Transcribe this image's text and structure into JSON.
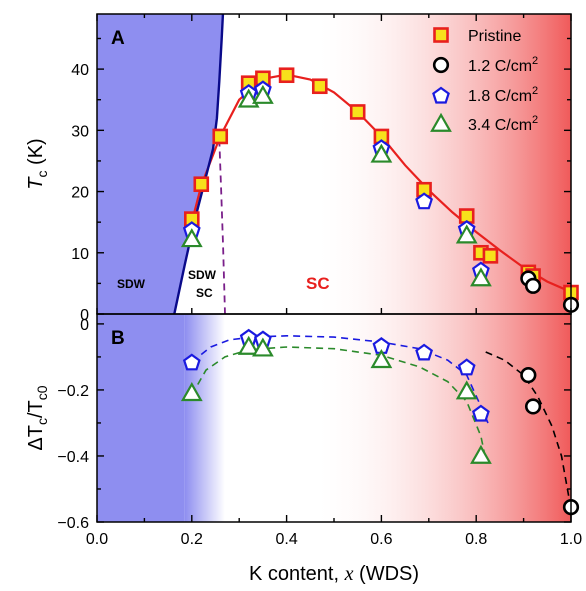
{
  "chart_data": [
    {
      "panel": "A",
      "type": "scatter",
      "ylabel": "T_c (K)",
      "ylabel_main": "T",
      "ylabel_sub": "c",
      "ylabel_unit": " (K)",
      "xlim": [
        0.0,
        1.0
      ],
      "ylim": [
        0,
        49
      ],
      "yticks": [
        "0",
        "10",
        "20",
        "30",
        "40"
      ],
      "ytick_values": [
        0,
        10,
        20,
        30,
        40
      ],
      "legend_position": "top-right",
      "region_labels": [
        "SDW",
        "SDW",
        "SC",
        "SC"
      ],
      "series": [
        {
          "name": "Pristine",
          "marker": "square",
          "color": "#e8201e",
          "fill": "#f7e11b",
          "x": [
            0.2,
            0.22,
            0.26,
            0.32,
            0.35,
            0.4,
            0.47,
            0.55,
            0.6,
            0.69,
            0.78,
            0.81,
            0.83,
            0.91,
            0.92,
            1.0
          ],
          "y": [
            15.5,
            21.2,
            29.0,
            37.7,
            38.5,
            39.0,
            37.2,
            33.0,
            29.0,
            20.3,
            16.0,
            10.0,
            9.5,
            6.8,
            6.2,
            3.5
          ]
        },
        {
          "name": "1.2 C/cm²",
          "marker": "circle",
          "color": "#000000",
          "fill": "#ffffff",
          "x": [
            0.91,
            0.92,
            1.0
          ],
          "y": [
            5.8,
            4.6,
            1.5
          ]
        },
        {
          "name": "1.8 C/cm²",
          "marker": "pentagon",
          "color": "#1a1ae0",
          "fill": "#ffffff",
          "x": [
            0.2,
            0.32,
            0.35,
            0.6,
            0.69,
            0.78,
            0.81
          ],
          "y": [
            13.8,
            36.2,
            36.8,
            27.2,
            18.5,
            14.0,
            7.2
          ]
        },
        {
          "name": "3.4 C/cm²",
          "marker": "triangle",
          "color": "#2b8a2b",
          "fill": "#ffffff",
          "x": [
            0.2,
            0.32,
            0.35,
            0.6,
            0.78,
            0.81
          ],
          "y": [
            12.2,
            35.0,
            35.6,
            26.0,
            12.8,
            5.8
          ]
        }
      ]
    },
    {
      "panel": "B",
      "type": "scatter",
      "ylabel": "ΔT_c/T_c0",
      "xlabel": "K content, x (WDS)",
      "xlim": [
        0.0,
        1.0
      ],
      "ylim": [
        -0.6,
        0.03
      ],
      "xticks": [
        "0.0",
        "0.2",
        "0.4",
        "0.6",
        "0.8",
        "1.0"
      ],
      "xtick_values": [
        0.0,
        0.2,
        0.4,
        0.6,
        0.8,
        1.0
      ],
      "yticks": [
        "0",
        "−0.2",
        "−0.4",
        "−0.6"
      ],
      "ytick_values": [
        0,
        -0.2,
        -0.4,
        -0.6
      ],
      "series": [
        {
          "name": "1.2 C/cm²",
          "marker": "circle",
          "color": "#000000",
          "fill": "#ffffff",
          "x": [
            0.91,
            0.92,
            1.0
          ],
          "y": [
            -0.155,
            -0.25,
            -0.555
          ]
        },
        {
          "name": "1.8 C/cm²",
          "marker": "pentagon",
          "color": "#1a1ae0",
          "fill": "#ffffff",
          "x": [
            0.2,
            0.32,
            0.35,
            0.6,
            0.69,
            0.78,
            0.81
          ],
          "y": [
            -0.115,
            -0.04,
            -0.045,
            -0.065,
            -0.085,
            -0.13,
            -0.27
          ]
        },
        {
          "name": "3.4 C/cm²",
          "marker": "triangle",
          "color": "#2b8a2b",
          "fill": "#ffffff",
          "x": [
            0.2,
            0.32,
            0.35,
            0.6,
            0.78,
            0.81
          ],
          "y": [
            -0.21,
            -0.07,
            -0.075,
            -0.11,
            -0.205,
            -0.4
          ]
        }
      ]
    }
  ],
  "labels": {
    "panel_a": "A",
    "panel_b": "B",
    "sdw": "SDW",
    "sdw_sc_top": "SDW",
    "sdw_sc_bottom": "SC",
    "sc": "SC",
    "ylabel_a_main": "T",
    "ylabel_a_sub": "c",
    "ylabel_a_unit": " (K)",
    "ylabel_b_delta": "ΔT",
    "ylabel_b_sub1": "c",
    "ylabel_b_slash": "/T",
    "ylabel_b_sub2": "c0",
    "xlabel_main": "K content, ",
    "xlabel_var": "x",
    "xlabel_tail": " (WDS)",
    "legend": [
      {
        "text": "Pristine",
        "sup": ""
      },
      {
        "text": "1.2 C/cm",
        "sup": "2"
      },
      {
        "text": "1.8 C/cm",
        "sup": "2"
      },
      {
        "text": "3.4 C/cm",
        "sup": "2"
      }
    ]
  },
  "colors": {
    "sdw_region": "#8e8ef0",
    "sc_region_right": "#f05a5a",
    "sc_curve": "#e8201e",
    "sdw_boundary": "#0a0a8a",
    "sdw_sc_boundary": "#7a1f8a",
    "fit_18": "#1a1ae0",
    "fit_34": "#2b8a2b",
    "fit_12": "#000000"
  }
}
